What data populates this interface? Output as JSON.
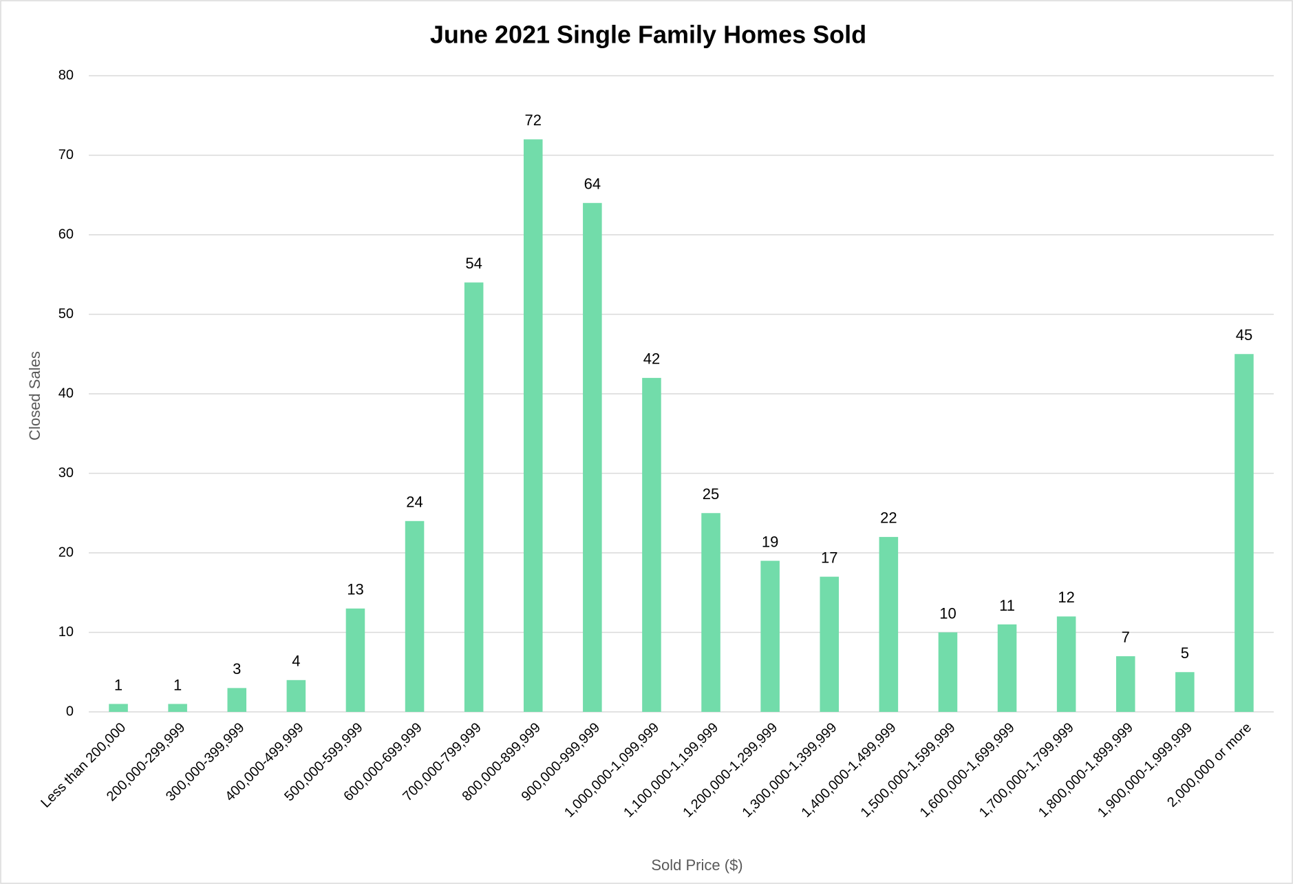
{
  "chart_data": {
    "type": "bar",
    "title": "June 2021 Single Family Homes Sold",
    "x_label": "Sold Price ($)",
    "y_label": "Closed Sales",
    "categories": [
      "Less than 200,000",
      "200,000-299,999",
      "300,000-399,999",
      "400,000-499,999",
      "500,000-599,999",
      "600,000-699,999",
      "700,000-799,999",
      "800,000-899,999",
      "900,000-999,999",
      "1,000,000-1,099,999",
      "1,100,000-1,199,999",
      "1,200,000-1,299,999",
      "1,300,000-1,399,999",
      "1,400,000-1,499,999",
      "1,500,000-1,599,999",
      "1,600,000-1,699,999",
      "1,700,000-1,799,999",
      "1,800,000-1,899,999",
      "1,900,000-1,999,999",
      "2,000,000 or more"
    ],
    "values": [
      1,
      1,
      3,
      4,
      13,
      24,
      54,
      72,
      64,
      42,
      25,
      19,
      17,
      22,
      10,
      11,
      12,
      7,
      5,
      45
    ],
    "color": "#72dcaa",
    "ylim": [
      0,
      80
    ],
    "yticks": [
      0,
      10,
      20,
      30,
      40,
      50,
      60,
      70,
      80
    ],
    "grid": true
  }
}
